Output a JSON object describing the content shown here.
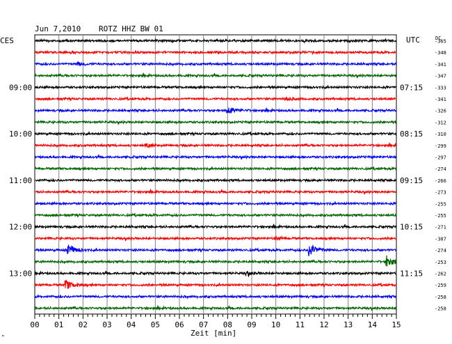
{
  "header": {
    "date": "Jun 7,2010",
    "station": "ROTZ HHZ BW 01"
  },
  "labels": {
    "left_tz": "CES",
    "right_tz": "UTC",
    "dc": "DC",
    "xlabel": "Zeit [min]",
    "corner_mark": "\""
  },
  "chart_data": {
    "type": "line",
    "title": "Jun 7,2010   ROTZ HHZ BW 01",
    "xlabel": "Zeit [min]",
    "ylabel": "",
    "xlim": [
      0,
      15
    ],
    "x_ticks": [
      "00",
      "01",
      "02",
      "03",
      "04",
      "05",
      "06",
      "07",
      "08",
      "09",
      "10",
      "11",
      "12",
      "13",
      "14",
      "15"
    ],
    "grid": true,
    "row_colors": [
      "#000000",
      "#ff0000",
      "#0000ff",
      "#006400"
    ],
    "left_time_labels": [
      {
        "row": 4,
        "label": "09:00"
      },
      {
        "row": 8,
        "label": "10:00"
      },
      {
        "row": 12,
        "label": "11:00"
      },
      {
        "row": 16,
        "label": "12:00"
      },
      {
        "row": 20,
        "label": "13:00"
      }
    ],
    "right_time_labels": [
      {
        "row": 4,
        "label": "07:15"
      },
      {
        "row": 8,
        "label": "08:15"
      },
      {
        "row": 12,
        "label": "09:15"
      },
      {
        "row": 16,
        "label": "10:15"
      },
      {
        "row": 20,
        "label": "11:15"
      }
    ],
    "dc_offsets": [
      "-365",
      "-348",
      "-341",
      "-347",
      "-333",
      "-341",
      "-326",
      "-312",
      "-310",
      "-299",
      "-297",
      "-274",
      "-266",
      "-273",
      "-255",
      "-255",
      "-271",
      "-307",
      "-274",
      "-253",
      "-262",
      "-259",
      "-258",
      "-258"
    ],
    "events": [
      {
        "row": 6,
        "minute": 8.0,
        "amplitude": 0.6
      },
      {
        "row": 17,
        "minute": 10.0,
        "amplitude": 0.2
      },
      {
        "row": 18,
        "minute": 1.4,
        "amplitude": 0.8
      },
      {
        "row": 18,
        "minute": 11.4,
        "amplitude": 1.0
      },
      {
        "row": 19,
        "minute": 14.6,
        "amplitude": 0.8
      },
      {
        "row": 21,
        "minute": 1.3,
        "amplitude": 0.6
      },
      {
        "row": 20,
        "minute": 8.8,
        "amplitude": 0.25
      },
      {
        "row": 9,
        "minute": 4.6,
        "amplitude": 0.25
      },
      {
        "row": 5,
        "minute": 10.4,
        "amplitude": 0.25
      },
      {
        "row": 2,
        "minute": 1.8,
        "amplitude": 0.2
      }
    ]
  }
}
